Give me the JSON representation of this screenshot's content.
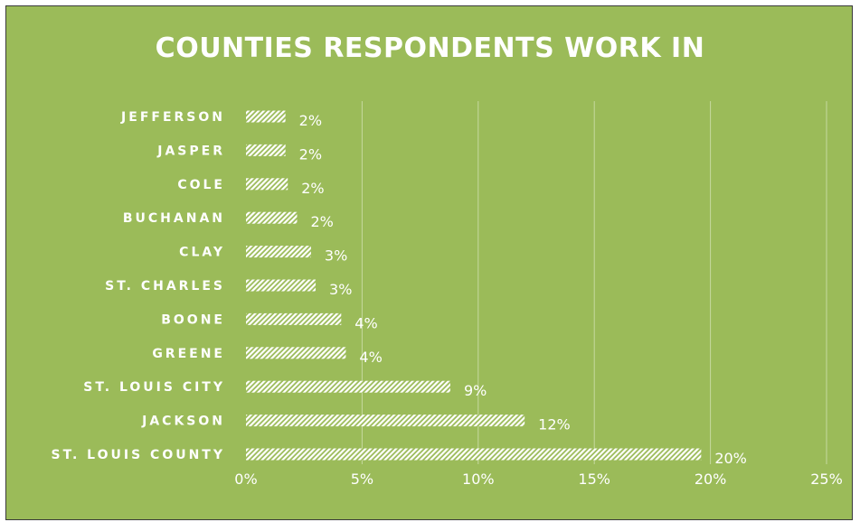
{
  "chart_data": {
    "type": "bar",
    "orientation": "horizontal",
    "title": "COUNTIES RESPONDENTS WORK IN",
    "categories": [
      "JEFFERSON",
      "JASPER",
      "COLE",
      "BUCHANAN",
      "CLAY",
      "ST. CHARLES",
      "BOONE",
      "GREENE",
      "ST. LOUIS CITY",
      "JACKSON",
      "ST. LOUIS COUNTY"
    ],
    "values": [
      1.7,
      1.7,
      1.8,
      2.2,
      2.8,
      3.0,
      4.1,
      4.3,
      8.8,
      12.0,
      19.6
    ],
    "data_labels": [
      "2%",
      "2%",
      "2%",
      "2%",
      "3%",
      "3%",
      "4%",
      "4%",
      "9%",
      "12%",
      "20%"
    ],
    "x_ticks": [
      "0%",
      "5%",
      "10%",
      "15%",
      "20%",
      "25%"
    ],
    "xlim": [
      0,
      25
    ],
    "xlabel": "",
    "ylabel": "",
    "grid": true,
    "legend": false,
    "colors": {
      "background": "#9bbb59",
      "bar_fill": "#ffffff",
      "bar_pattern": "diagonal-stripes",
      "text": "#ffffff",
      "gridline": "#c6d9a0"
    }
  }
}
